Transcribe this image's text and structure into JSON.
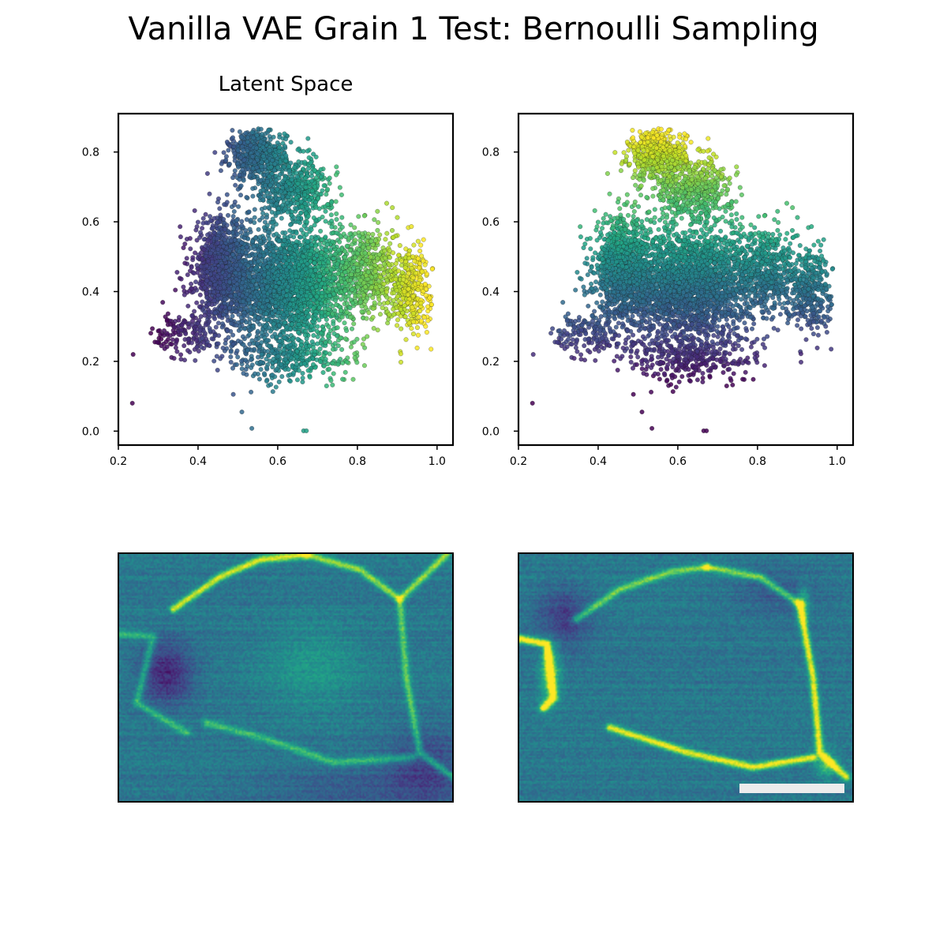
{
  "figure": {
    "title": "Vanilla VAE Grain 1 Test: Bernoulli Sampling"
  },
  "chart_data": [
    {
      "type": "scatter",
      "title": "Latent Space",
      "xlabel": "",
      "ylabel": "",
      "xlim": [
        0.2,
        1.04
      ],
      "ylim": [
        -0.04,
        0.91
      ],
      "xticks": [
        "0.2",
        "0.4",
        "0.6",
        "0.8",
        "1.0"
      ],
      "yticks": [
        "0.0",
        "0.2",
        "0.4",
        "0.6",
        "0.8"
      ],
      "xtick_values": [
        0.2,
        0.4,
        0.6,
        0.8,
        1.0
      ],
      "ytick_values": [
        0.0,
        0.2,
        0.4,
        0.6,
        0.8
      ],
      "colormap": "viridis",
      "color_by": "latent x",
      "grid": false,
      "points": [
        [
          0.235,
          0.08
        ],
        [
          0.237,
          0.22
        ],
        [
          0.535,
          0.008
        ],
        [
          0.665,
          0.001
        ],
        [
          0.672,
          0.001
        ],
        [
          0.51,
          0.055
        ],
        [
          0.985,
          0.235
        ],
        [
          0.93,
          0.31
        ]
      ]
    },
    {
      "type": "scatter",
      "title": "",
      "xlabel": "",
      "ylabel": "",
      "xlim": [
        0.2,
        1.04
      ],
      "ylim": [
        -0.04,
        0.91
      ],
      "xticks": [
        "0.2",
        "0.4",
        "0.6",
        "0.8",
        "1.0"
      ],
      "yticks": [
        "0.0",
        "0.2",
        "0.4",
        "0.6",
        "0.8"
      ],
      "xtick_values": [
        0.2,
        0.4,
        0.6,
        0.8,
        1.0
      ],
      "ytick_values": [
        0.0,
        0.2,
        0.4,
        0.6,
        0.8
      ],
      "colormap": "viridis",
      "color_by": "latent y",
      "grid": false,
      "points": [
        [
          0.235,
          0.08
        ],
        [
          0.237,
          0.22
        ],
        [
          0.535,
          0.008
        ],
        [
          0.665,
          0.001
        ],
        [
          0.672,
          0.001
        ],
        [
          0.51,
          0.055
        ],
        [
          0.985,
          0.235
        ],
        [
          0.93,
          0.31
        ]
      ]
    },
    {
      "type": "heatmap",
      "title": "",
      "colormap": "viridis",
      "axes": "off"
    },
    {
      "type": "heatmap",
      "title": "",
      "colormap": "viridis",
      "axes": "off",
      "scalebar": true
    }
  ],
  "colors": {
    "scalebar": "#ececec",
    "background": "#ffffff"
  }
}
